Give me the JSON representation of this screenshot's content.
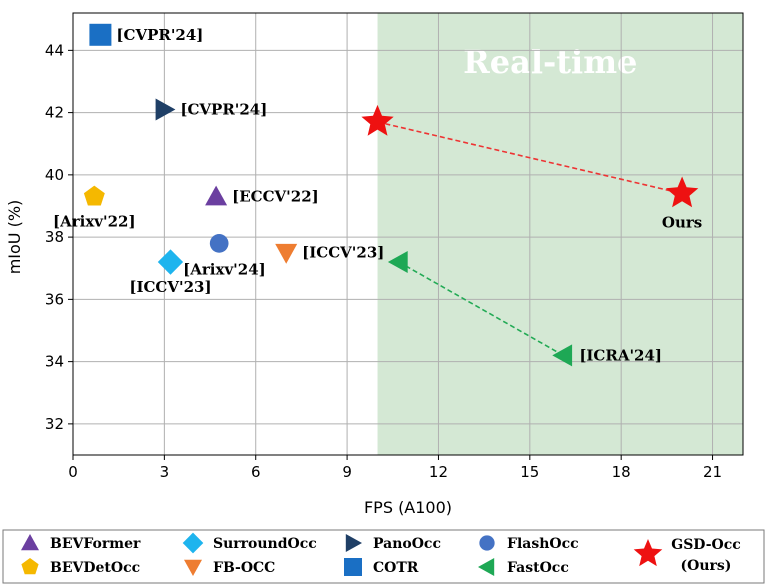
{
  "chart_data": {
    "type": "scatter",
    "xlabel": "FPS (A100)",
    "ylabel": "mIoU (%)",
    "xlim": [
      0,
      22
    ],
    "ylim": [
      31,
      45.2
    ],
    "xticks": [
      0,
      3,
      6,
      9,
      12,
      15,
      18,
      21
    ],
    "yticks": [
      32,
      34,
      36,
      38,
      40,
      42,
      44
    ],
    "grid": true,
    "realtime_region": {
      "x_from": 10,
      "x_to": 22,
      "label": "Real-time",
      "color": "#d4e8d4"
    },
    "points": [
      {
        "method": "COTR",
        "x": 0.9,
        "y": 44.5,
        "label": "[CVPR'24]",
        "label_pos": "right"
      },
      {
        "method": "PanoOcc",
        "x": 3.0,
        "y": 42.1,
        "label": "[CVPR'24]",
        "label_pos": "right"
      },
      {
        "method": "BEVDetOcc",
        "x": 0.7,
        "y": 39.3,
        "label": "[Arixv'22]",
        "label_pos": "below"
      },
      {
        "method": "BEVFormer",
        "x": 4.7,
        "y": 39.3,
        "label": "[ECCV'22]",
        "label_pos": "right"
      },
      {
        "method": "FlashOcc",
        "x": 4.8,
        "y": 37.8,
        "label": "[Arixv'24]",
        "label_pos": "below-right"
      },
      {
        "method": "SurroundOcc",
        "x": 3.2,
        "y": 37.2,
        "label": "[ICCV'23]",
        "label_pos": "below"
      },
      {
        "method": "FB-OCC",
        "x": 7.0,
        "y": 37.5,
        "label": "[ICCV'23]",
        "label_pos": "right"
      },
      {
        "method": "FastOcc",
        "x": 10.7,
        "y": 37.2,
        "label": "",
        "label_pos": "none"
      },
      {
        "method": "FastOcc",
        "x": 16.1,
        "y": 34.2,
        "label": "[ICRA'24]",
        "label_pos": "right"
      },
      {
        "method": "GSD-Occ",
        "x": 10.0,
        "y": 41.7,
        "label": "",
        "label_pos": "none"
      },
      {
        "method": "GSD-Occ",
        "x": 20.0,
        "y": 39.4,
        "label": "Ours",
        "label_pos": "below"
      }
    ],
    "connections": [
      {
        "method": "GSD-Occ",
        "from": [
          10.0,
          41.7
        ],
        "to": [
          20.0,
          39.4
        ],
        "color": "#ee3333"
      },
      {
        "method": "FastOcc",
        "from": [
          10.7,
          37.2
        ],
        "to": [
          16.1,
          34.2
        ],
        "color": "#22aa55"
      }
    ],
    "legend": {
      "position": "bottom",
      "entries": [
        {
          "method": "BEVFormer",
          "label": "BEVFormer",
          "marker": "triangle-up",
          "color": "#6b3fa0"
        },
        {
          "method": "BEVDetOcc",
          "label": "BEVDetOcc",
          "marker": "pentagon",
          "color": "#f5b800"
        },
        {
          "method": "SurroundOcc",
          "label": "SurroundOcc",
          "marker": "diamond",
          "color": "#1eb4ee"
        },
        {
          "method": "FB-OCC",
          "label": "FB-OCC",
          "marker": "triangle-down",
          "color": "#ee7d31"
        },
        {
          "method": "PanoOcc",
          "label": "PanoOcc",
          "marker": "triangle-right",
          "color": "#1f3f66"
        },
        {
          "method": "COTR",
          "label": "COTR",
          "marker": "square",
          "color": "#1a6fc4"
        },
        {
          "method": "FlashOcc",
          "label": "FlashOcc",
          "marker": "circle",
          "color": "#4472c4"
        },
        {
          "method": "FastOcc",
          "label": "FastOcc",
          "marker": "triangle-left",
          "color": "#1ea855"
        },
        {
          "method": "GSD-Occ",
          "label": "GSD-Occ",
          "label2": "(Ours)",
          "marker": "star",
          "color": "#ee1111"
        }
      ]
    }
  }
}
